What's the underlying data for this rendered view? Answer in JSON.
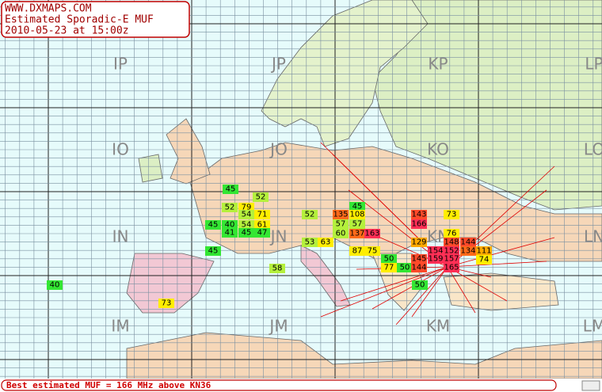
{
  "header": {
    "site": "WWW.DXMAPS.COM",
    "title": "Estimated Sporadic-E MUF",
    "timestamp": "2010-05-23 at 15:00z"
  },
  "locators": [
    "IP",
    "JP",
    "KP",
    "LP",
    "IO",
    "JO",
    "KO",
    "LO",
    "IN",
    "JN",
    "KN",
    "LN",
    "IM",
    "JM",
    "KM",
    "LM"
  ],
  "muf_reports": [
    45,
    52,
    52,
    79,
    54,
    71,
    45,
    40,
    54,
    61,
    41,
    45,
    47,
    52,
    45,
    135,
    108,
    57,
    57,
    60,
    137,
    163,
    53,
    63,
    87,
    75,
    143,
    166,
    73,
    76,
    129,
    148,
    144,
    154,
    152,
    134,
    111,
    74,
    45,
    50,
    145,
    159,
    157,
    77,
    50,
    144,
    165,
    58,
    40,
    50,
    73
  ],
  "footer": {
    "text": "Best estimated MUF = 166 MHz above KN36"
  }
}
